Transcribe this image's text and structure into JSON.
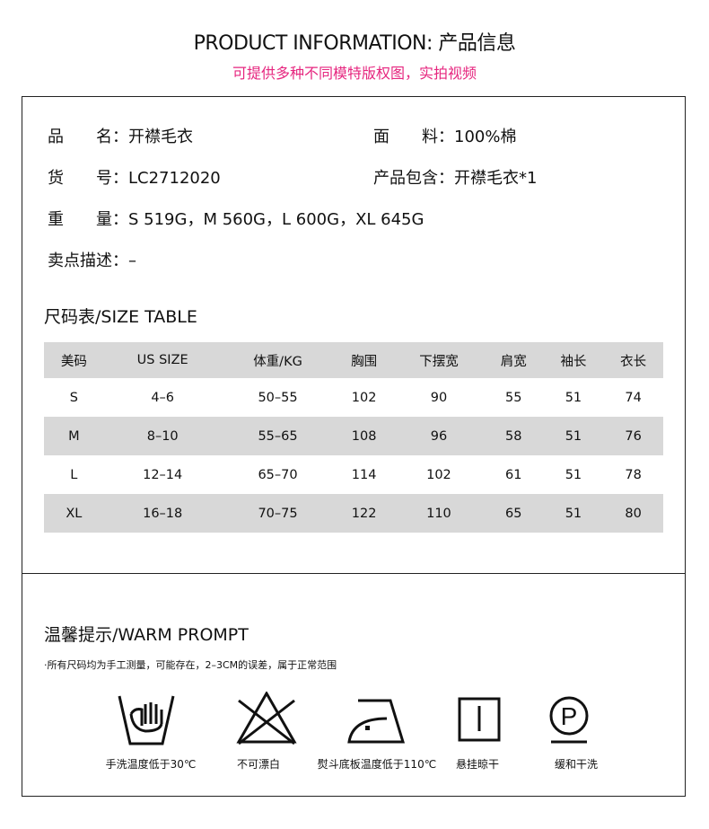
{
  "header": {
    "title": "PRODUCT INFORMATION: 产品信息",
    "subtitle": "可提供多种不同模特版权图，实拍视频",
    "subtitle_color": "#e6267f"
  },
  "info": {
    "name_label": "品　　名：",
    "name": "开襟毛衣",
    "fabric_label": "面　　料：",
    "fabric": "100%棉",
    "sku_label": "货　　号：",
    "sku": "LC2712020",
    "includes_label": "产品包含：",
    "includes": "开襟毛衣*1",
    "weight_label": "重　　量：",
    "weight": "S 519G，M 560G，L 600G，XL 645G",
    "selling_label": "卖点描述：",
    "selling": "–"
  },
  "size_table": {
    "title": "尺码表/SIZE TABLE",
    "headers": [
      "美码",
      "US SIZE",
      "体重/KG",
      "胸围",
      "下摆宽",
      "肩宽",
      "袖长",
      "衣长"
    ],
    "rows": [
      [
        "S",
        "4–6",
        "50–55",
        "102",
        "90",
        "55",
        "51",
        "74"
      ],
      [
        "M",
        "8–10",
        "55–65",
        "108",
        "96",
        "58",
        "51",
        "76"
      ],
      [
        "L",
        "12–14",
        "65–70",
        "114",
        "102",
        "61",
        "51",
        "78"
      ],
      [
        "XL",
        "16–18",
        "70–75",
        "122",
        "110",
        "65",
        "51",
        "80"
      ]
    ]
  },
  "prompt": {
    "title": "温馨提示/WARM PROMPT",
    "note": "·所有尺码均为手工测量，可能存在，2–3CM的误差，属于正常范围",
    "care": [
      {
        "icon": "hand-wash-icon",
        "label": "手洗温度低于30℃"
      },
      {
        "icon": "no-bleach-icon",
        "label": "不可漂白"
      },
      {
        "icon": "iron-low-icon",
        "label": "熨斗底板温度低于110℃"
      },
      {
        "icon": "hang-dry-icon",
        "label": "悬挂晾干"
      },
      {
        "icon": "gentle-dry-clean-icon",
        "label": "缓和干洗"
      }
    ]
  }
}
